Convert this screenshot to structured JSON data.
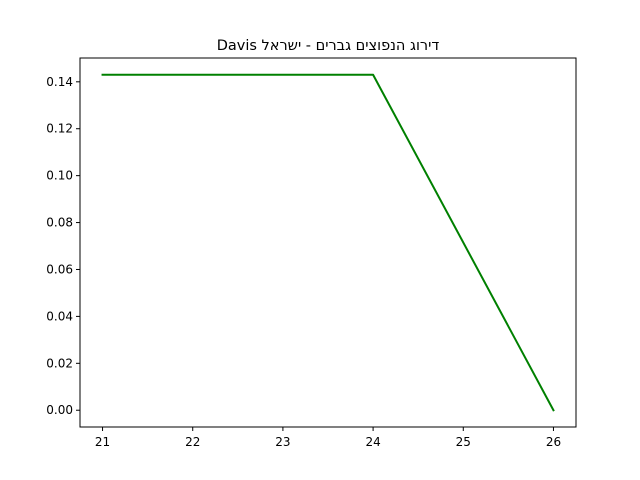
{
  "chart_data": {
    "type": "line",
    "title": "Davis דירוג הנפוצים גברים - ישראל",
    "xlabel": "",
    "ylabel": "",
    "x": [
      21,
      24,
      26
    ],
    "series": [
      {
        "values": [
          0.143,
          0.143,
          0.0
        ],
        "color": "#008000"
      }
    ],
    "xlim": [
      20.75,
      26.25
    ],
    "ylim": [
      -0.00715,
      0.15015
    ],
    "x_ticks": [
      21,
      22,
      23,
      24,
      25,
      26
    ],
    "y_ticks": [
      0.0,
      0.02,
      0.04,
      0.06,
      0.08,
      0.1,
      0.12,
      0.14
    ],
    "grid": false,
    "legend": "none"
  }
}
